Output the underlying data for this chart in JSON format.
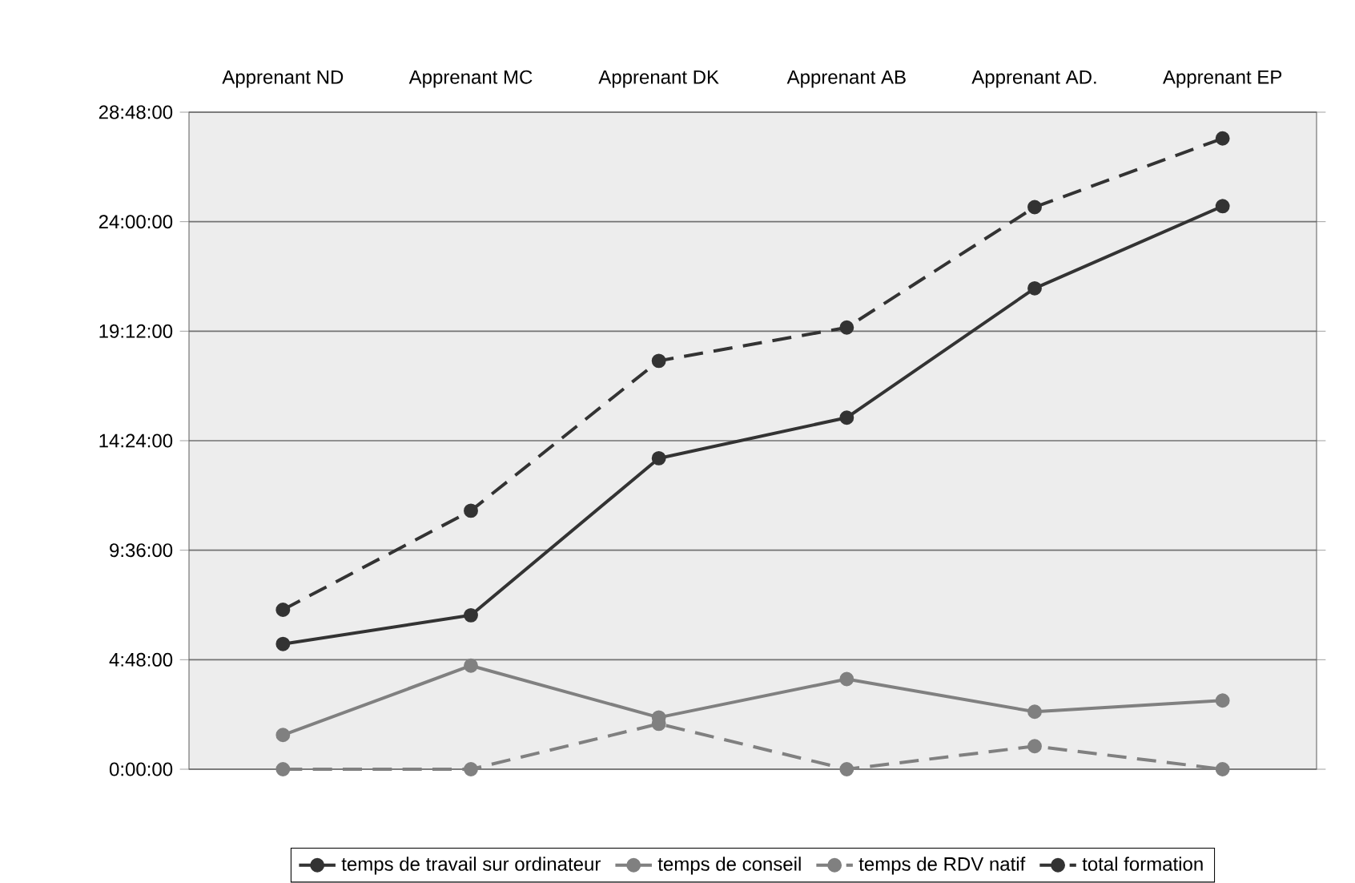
{
  "chart_data": {
    "type": "line",
    "categories": [
      "Apprenant ND",
      "Apprenant MC",
      "Apprenant DK",
      "Apprenant AB",
      "Apprenant AD.",
      "Apprenant EP"
    ],
    "series": [
      {
        "name": "temps de travail sur ordinateur",
        "color": "#333333",
        "line_style": "solid",
        "values": [
          5.49,
          6.75,
          13.63,
          15.41,
          21.08,
          24.68
        ]
      },
      {
        "name": "temps de conseil",
        "color": "#808080",
        "line_style": "solid",
        "values": [
          1.5,
          4.54,
          2.27,
          3.95,
          2.52,
          3.01
        ]
      },
      {
        "name": "temps de RDV natif",
        "color": "#808080",
        "line_style": "dashed",
        "values": [
          0,
          0,
          1.99,
          0,
          1.01,
          0
        ]
      },
      {
        "name": "total formation",
        "color": "#333333",
        "line_style": "dashed",
        "values": [
          6.99,
          11.33,
          17.9,
          19.36,
          24.64,
          27.65
        ]
      }
    ],
    "ylim": [
      0,
      28.8
    ],
    "yticks": [
      {
        "value": 0,
        "label": "0:00:00"
      },
      {
        "value": 4.8,
        "label": "4:48:00"
      },
      {
        "value": 9.6,
        "label": "9:36:00"
      },
      {
        "value": 14.4,
        "label": "14:24:00"
      },
      {
        "value": 19.2,
        "label": "19:12:00"
      },
      {
        "value": 24,
        "label": "24:00:00"
      },
      {
        "value": 28.8,
        "label": "28:48:00"
      }
    ],
    "grid": "y",
    "legend": "bottom",
    "marker": "circle"
  }
}
